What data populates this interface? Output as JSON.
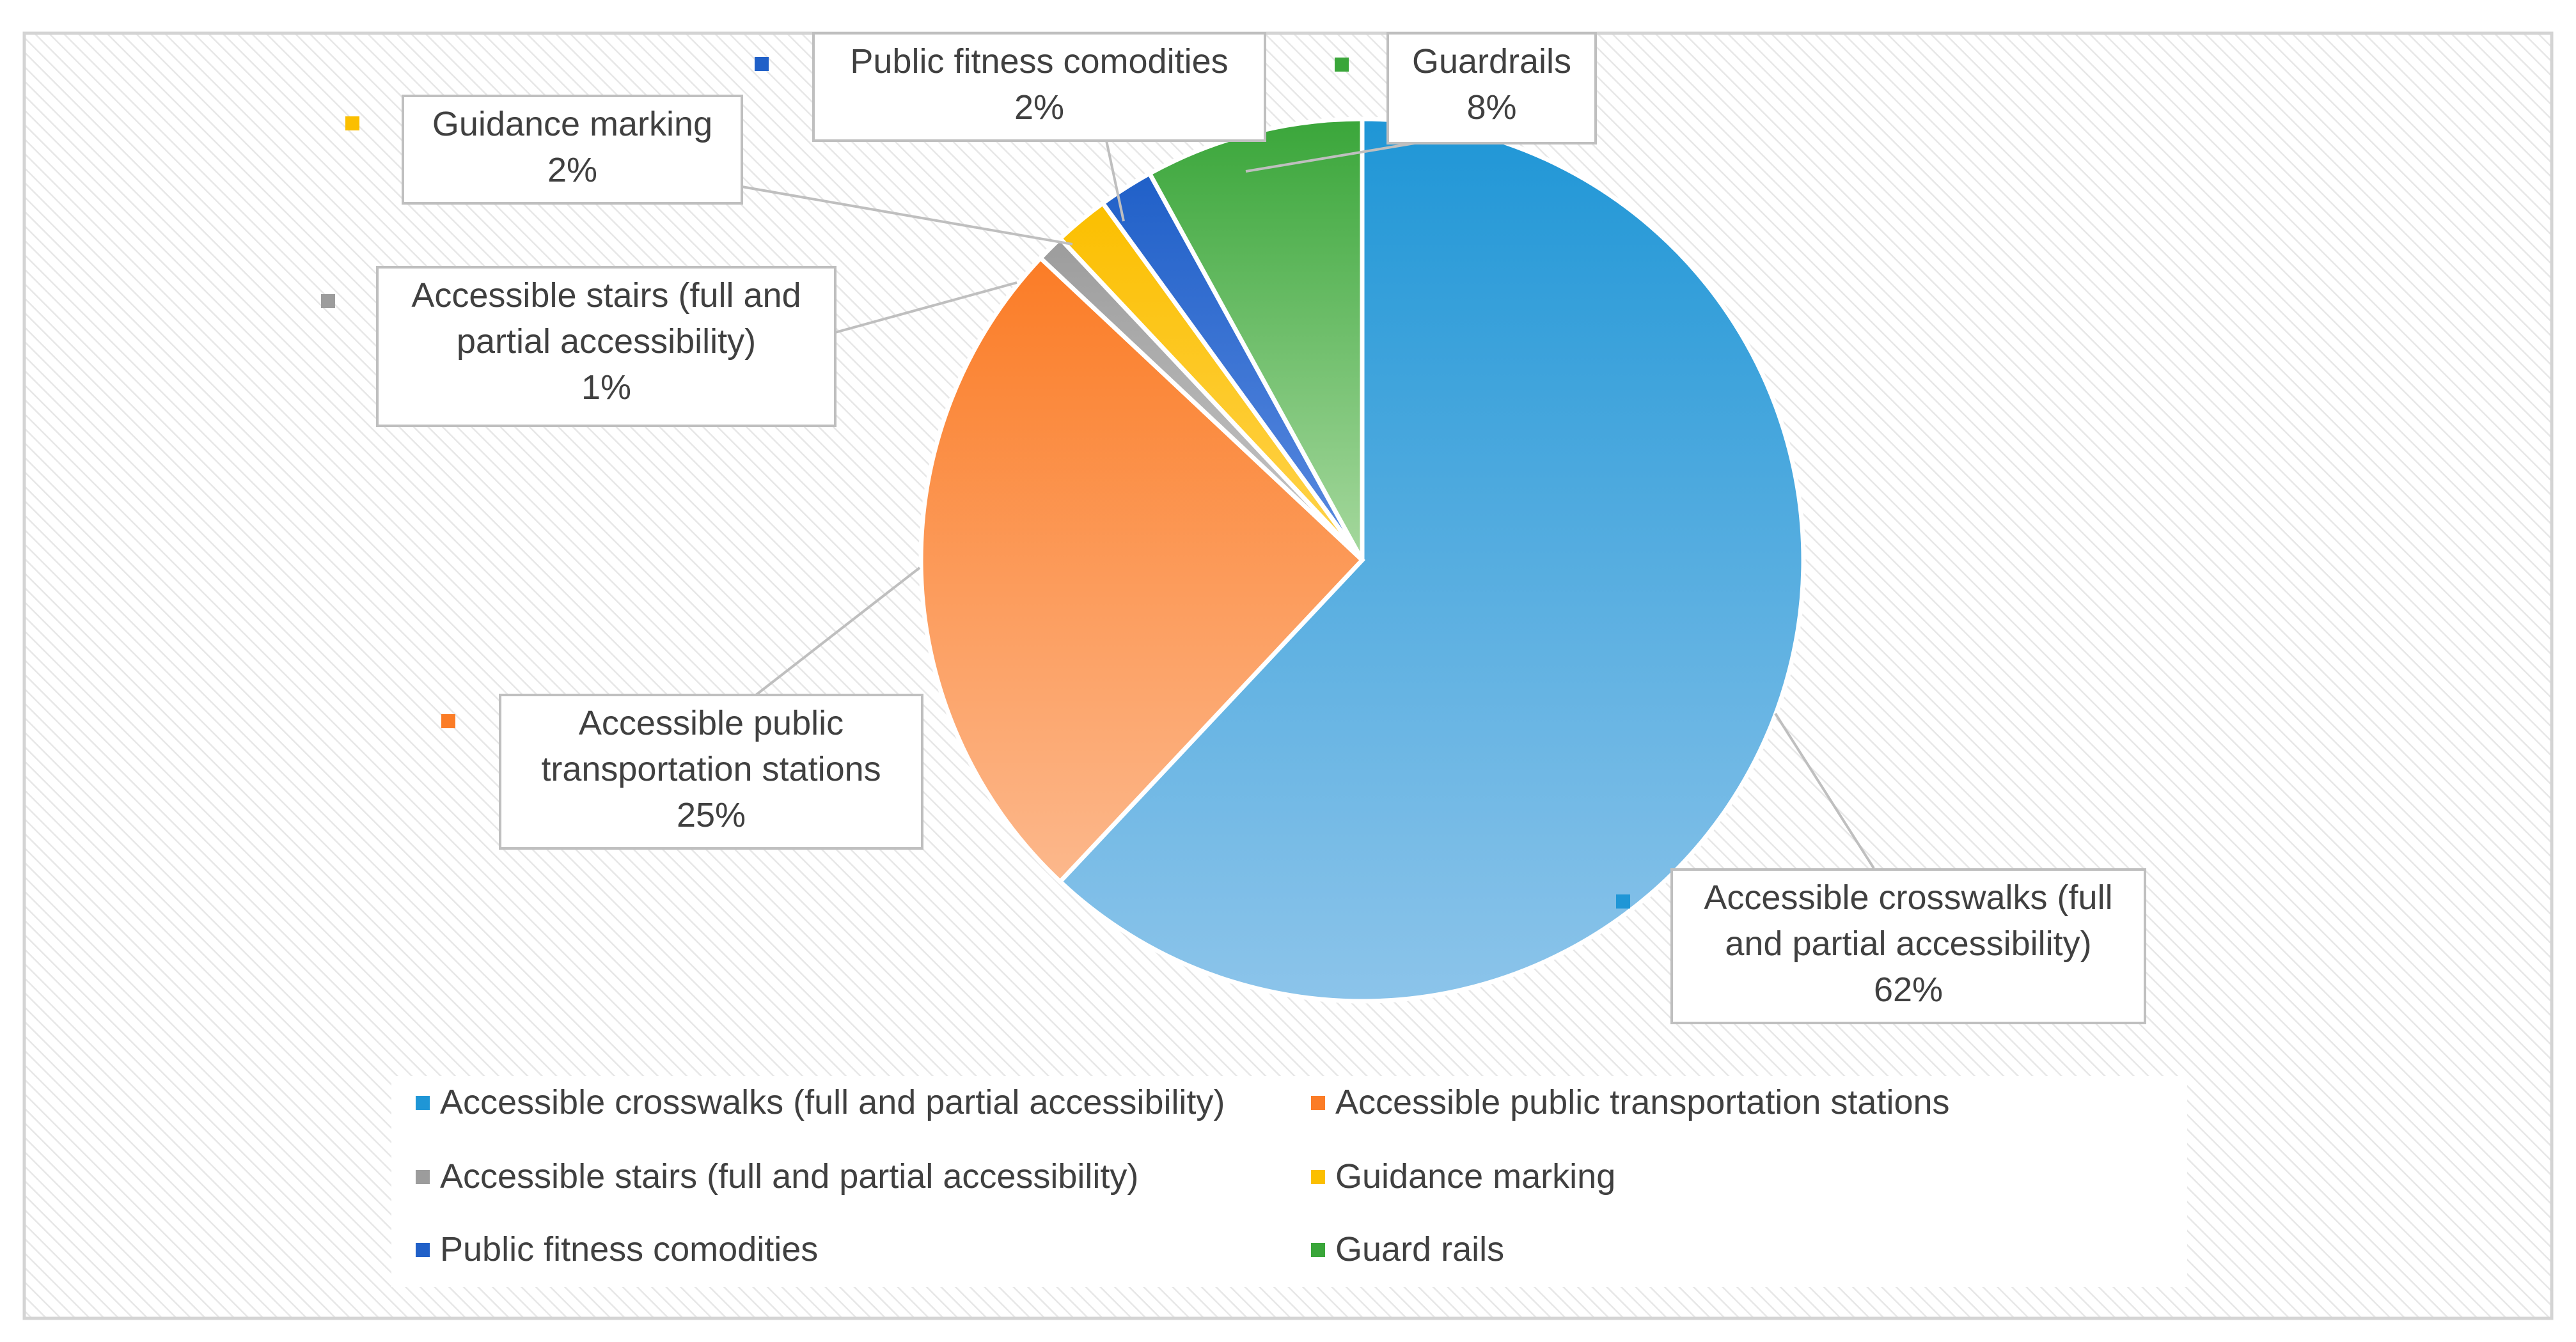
{
  "chart_data": {
    "type": "pie",
    "title": "",
    "categories": [
      "Accessible crosswalks (full and partial accessibility)",
      "Accessible public transportation stations",
      "Accessible stairs (full and partial accessibility)",
      "Guidance marking",
      "Public fitness comodities",
      "Guard rails"
    ],
    "values": [
      62,
      25,
      1,
      2,
      2,
      8
    ],
    "percent_labels": [
      "62%",
      "25%",
      "1%",
      "2%",
      "2%",
      "8%"
    ],
    "data_labels": [
      [
        "Accessible crosswalks (full",
        "and partial accessibility)"
      ],
      [
        "Accessible public",
        "transportation stations"
      ],
      [
        "Accessible stairs (full and",
        "partial accessibility)"
      ],
      [
        "Guidance marking"
      ],
      [
        "Public fitness comodities"
      ],
      [
        "Guardrails"
      ]
    ],
    "slice_names": [
      "pie-slice-crosswalks",
      "pie-slice-transport-stations",
      "pie-slice-stairs",
      "pie-slice-guidance-marking",
      "pie-slice-fitness",
      "pie-slice-guardrails"
    ],
    "colors": {
      "crosswalks": [
        "#1f96d6",
        "#8cc4ea"
      ],
      "transport": [
        "#fb7c26",
        "#fcb88c"
      ],
      "stairs": [
        "#9c9c9c",
        "#c8c8c8"
      ],
      "guidance": [
        "#fbbf00",
        "#ffd34d"
      ],
      "fitness": [
        "#2060c8",
        "#5a8ae0"
      ],
      "guardrails": [
        "#3aa63a",
        "#a6d89e"
      ]
    },
    "legend": {
      "position": "bottom",
      "items": [
        "Accessible crosswalks (full and partial accessibility)",
        "Accessible public transportation stations",
        "Accessible stairs (full and partial accessibility)",
        "Guidance marking",
        "Public fitness comodities",
        "Guard rails"
      ]
    },
    "start_angle_deg": 0,
    "direction": "clockwise"
  }
}
